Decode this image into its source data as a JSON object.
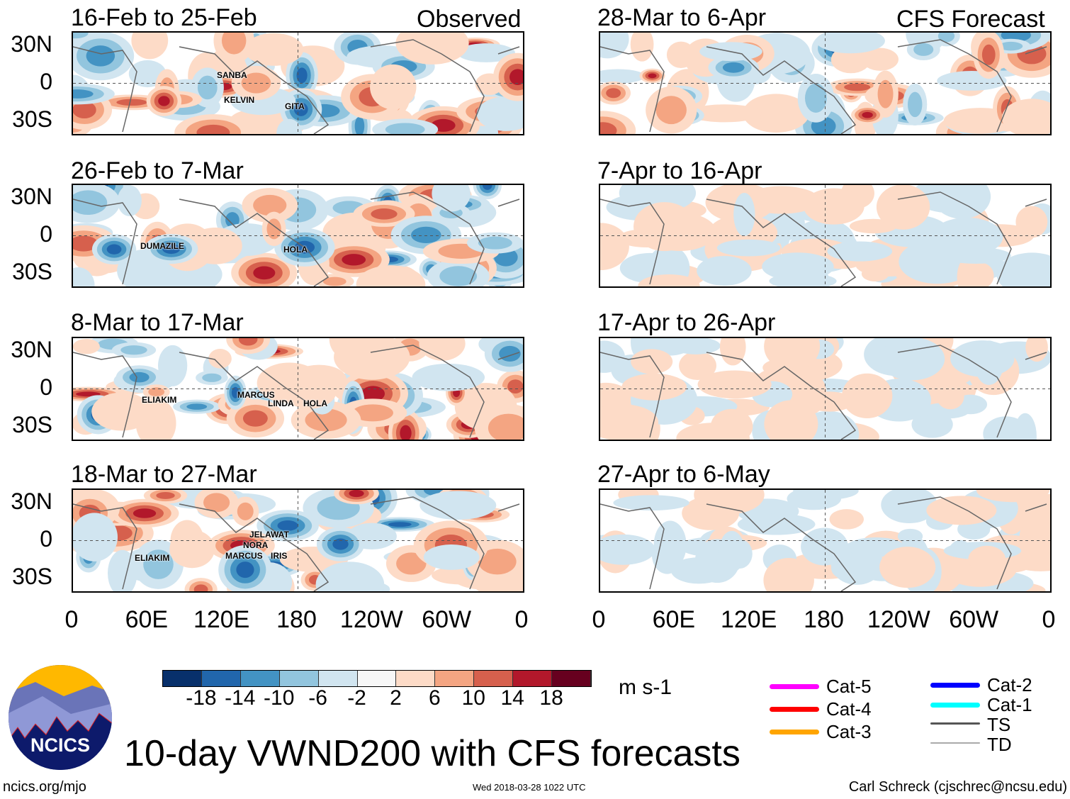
{
  "chart_data": {
    "type": "heatmap",
    "title": "10-day VWND200 with CFS forecasts",
    "units": "m s-1",
    "colorbar": {
      "ticks": [
        "-18",
        "-14",
        "-10",
        "-6",
        "-2",
        "2",
        "6",
        "10",
        "14",
        "18"
      ],
      "colors": [
        "#08306b",
        "#2166ac",
        "#4393c3",
        "#92c5de",
        "#d1e5f0",
        "#f7f7f7",
        "#fddbc7",
        "#f4a582",
        "#d6604d",
        "#b2182b",
        "#67001f"
      ]
    },
    "lat_labels": [
      "30N",
      "0",
      "30S"
    ],
    "lon_labels": [
      "0",
      "60E",
      "120E",
      "180",
      "120W",
      "60W",
      "0"
    ],
    "columns": {
      "left": "Observed",
      "right": "CFS Forecast"
    },
    "panels": [
      {
        "title": "16-Feb to 25-Feb",
        "column": "left",
        "intensity": 1.0,
        "storms": [
          "SANBA",
          "KELVIN",
          "GITA"
        ]
      },
      {
        "title": "26-Feb to 7-Mar",
        "column": "left",
        "intensity": 1.0,
        "storms": [
          "DUMAZILE",
          "HOLA"
        ]
      },
      {
        "title": "8-Mar to 17-Mar",
        "column": "left",
        "intensity": 1.0,
        "storms": [
          "ELIAKIM",
          "MARCUS",
          "LINDA",
          "HOLA"
        ]
      },
      {
        "title": "18-Mar to 27-Mar",
        "column": "left",
        "intensity": 1.0,
        "storms": [
          "JELAWAT",
          "NORA",
          "MARCUS",
          "IRIS",
          "ELIAKIM"
        ]
      },
      {
        "title": "28-Mar to 6-Apr",
        "column": "right",
        "intensity": 0.85,
        "storms": []
      },
      {
        "title": "7-Apr to 16-Apr",
        "column": "right",
        "intensity": 0.35,
        "storms": []
      },
      {
        "title": "17-Apr to 26-Apr",
        "column": "right",
        "intensity": 0.3,
        "storms": []
      },
      {
        "title": "27-Apr to 6-May",
        "column": "right",
        "intensity": 0.3,
        "storms": []
      }
    ],
    "legend": [
      {
        "label": "Cat-5",
        "color": "#ff00ff"
      },
      {
        "label": "Cat-4",
        "color": "#ff0000"
      },
      {
        "label": "Cat-3",
        "color": "#ffa500"
      },
      {
        "label": "Cat-2",
        "color": "#0000ff"
      },
      {
        "label": "Cat-1",
        "color": "#00ffff"
      },
      {
        "label": "TS",
        "color": "#555555"
      },
      {
        "label": "TD",
        "color": "#aaaaaa"
      }
    ]
  },
  "logo_text": "NCICS",
  "footer": {
    "left": "ncics.org/mjo",
    "center": "Wed 2018-03-28 1022 UTC",
    "right": "Carl Schreck (cjschrec@ncsu.edu)"
  }
}
